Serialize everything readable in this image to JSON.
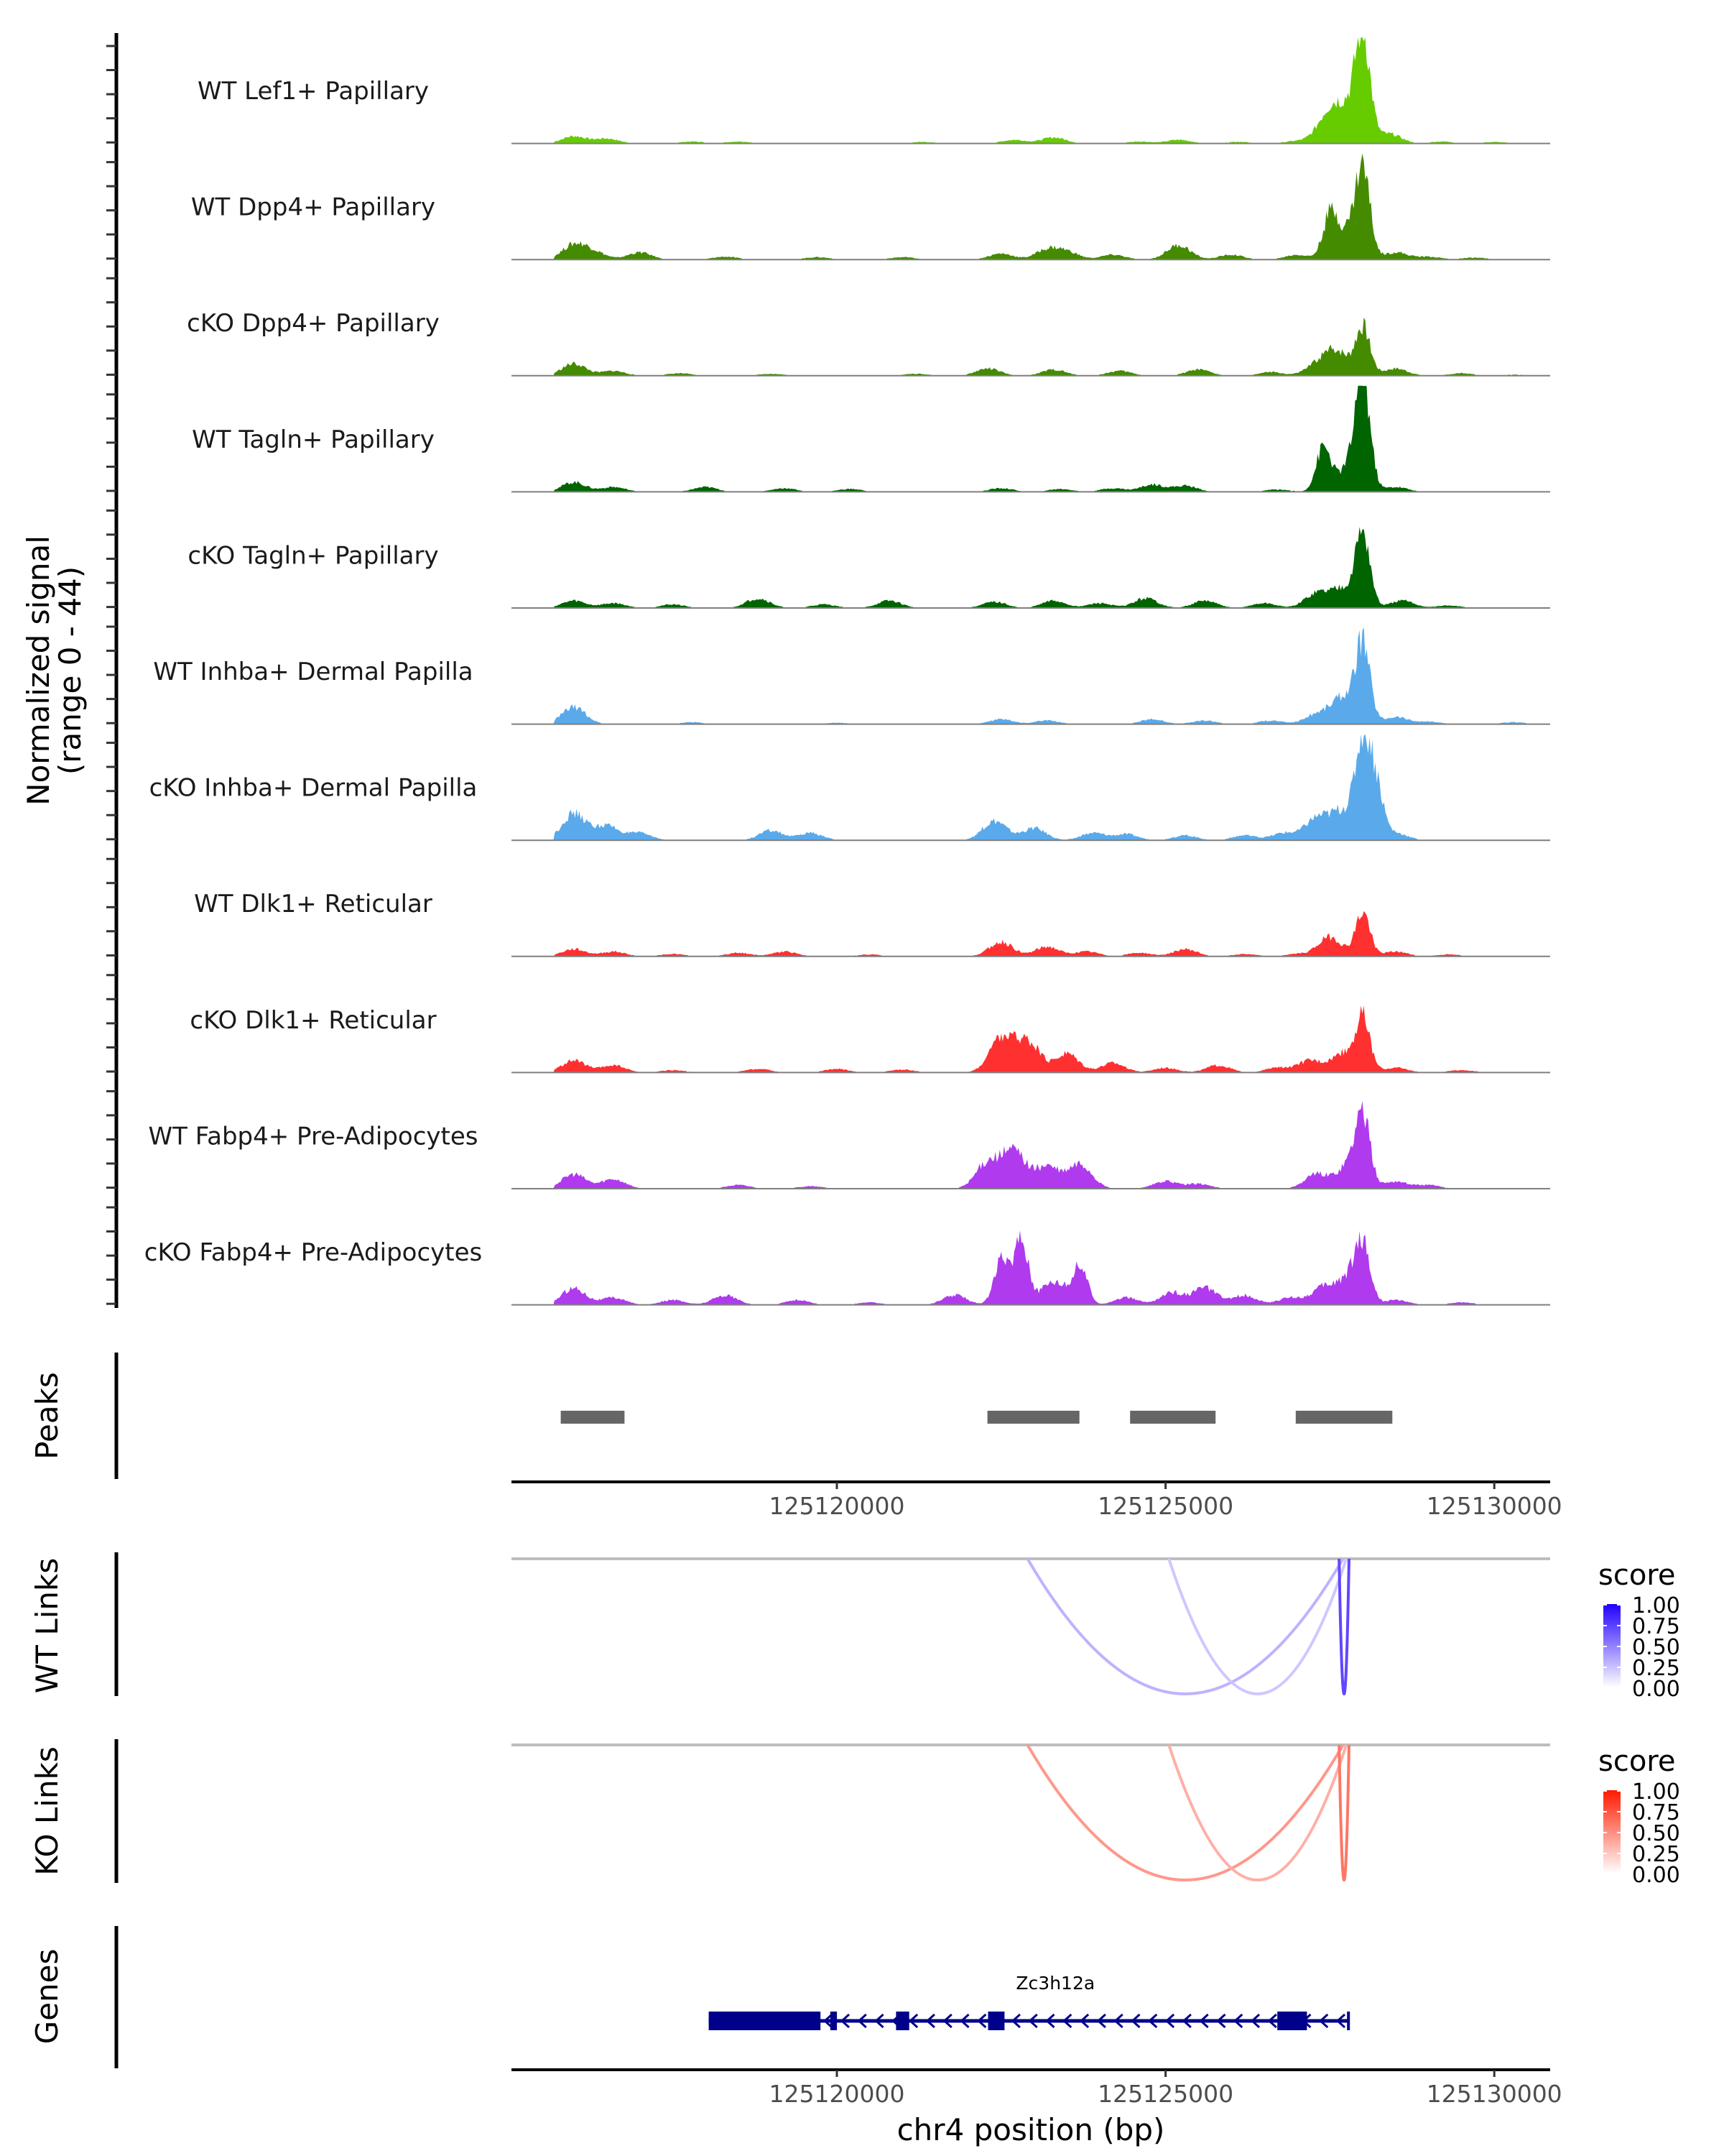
{
  "chart_data": {
    "type": "area",
    "title": "",
    "region": "chr4",
    "xlabel": "chr4 position (bp)",
    "xlim": [
      125115050,
      125130850
    ],
    "x_ticks": [
      125120000,
      125125000,
      125130000
    ],
    "x_tick_labels": [
      "125120000",
      "125125000",
      "125130000"
    ],
    "coverage": {
      "ylabel_line1": "Normalized signal",
      "ylabel_line2": "(range 0 - 44)",
      "ylim": [
        0,
        44
      ],
      "tracks": [
        {
          "label": "WT Lef1+ Papillary",
          "color": "#66cc00",
          "peaks": [
            [
              125116000,
              3
            ],
            [
              125116500,
              2
            ],
            [
              125117800,
              0.8
            ],
            [
              125118500,
              0.8
            ],
            [
              125121300,
              0.6
            ],
            [
              125122700,
              1.5
            ],
            [
              125123300,
              2.5
            ],
            [
              125124600,
              0.8
            ],
            [
              125125200,
              1.5
            ],
            [
              125126100,
              0.7
            ],
            [
              125127000,
              1
            ],
            [
              125127500,
              13
            ],
            [
              125127800,
              12
            ],
            [
              125128000,
              41
            ],
            [
              125128400,
              4
            ],
            [
              125129200,
              0.8
            ],
            [
              125130000,
              0.6
            ]
          ]
        },
        {
          "label": "WT Dpp4+ Papillary",
          "color": "#448b00",
          "peaks": [
            [
              125116000,
              6
            ],
            [
              125116300,
              3
            ],
            [
              125117000,
              3
            ],
            [
              125118300,
              1.2
            ],
            [
              125119700,
              1
            ],
            [
              125121000,
              1
            ],
            [
              125122500,
              2.5
            ],
            [
              125123200,
              4
            ],
            [
              125123500,
              3
            ],
            [
              125124200,
              2
            ],
            [
              125125200,
              6
            ],
            [
              125126000,
              2
            ],
            [
              125127000,
              2
            ],
            [
              125127500,
              16
            ],
            [
              125127750,
              11
            ],
            [
              125128000,
              36
            ],
            [
              125128500,
              3
            ],
            [
              125129000,
              1.2
            ],
            [
              125129700,
              0.8
            ]
          ]
        },
        {
          "label": "cKO Dpp4+ Papillary",
          "color": "#448b00",
          "peaks": [
            [
              125116000,
              5
            ],
            [
              125116600,
              2
            ],
            [
              125117600,
              1
            ],
            [
              125119000,
              0.8
            ],
            [
              125121200,
              0.8
            ],
            [
              125122300,
              3
            ],
            [
              125123300,
              2.5
            ],
            [
              125124300,
              2
            ],
            [
              125125500,
              2.5
            ],
            [
              125126600,
              1.5
            ],
            [
              125127300,
              4
            ],
            [
              125127600,
              10
            ],
            [
              125128000,
              20
            ],
            [
              125128500,
              3
            ],
            [
              125129500,
              1
            ],
            [
              125130300,
              0.5
            ]
          ]
        },
        {
          "label": "WT Tagln+ Papillary",
          "color": "#006400",
          "peaks": [
            [
              125116000,
              4
            ],
            [
              125116600,
              2
            ],
            [
              125118000,
              2
            ],
            [
              125119200,
              1.5
            ],
            [
              125120200,
              1.2
            ],
            [
              125122500,
              1.5
            ],
            [
              125123400,
              1.2
            ],
            [
              125124200,
              1.5
            ],
            [
              125124800,
              3
            ],
            [
              125125300,
              2.5
            ],
            [
              125126700,
              1
            ],
            [
              125127400,
              18
            ],
            [
              125127800,
              10
            ],
            [
              125128000,
              44
            ],
            [
              125128500,
              2
            ]
          ]
        },
        {
          "label": "cKO Tagln+ Papillary",
          "color": "#006400",
          "peaks": [
            [
              125116000,
              3
            ],
            [
              125116600,
              2
            ],
            [
              125117500,
              1.5
            ],
            [
              125118800,
              4
            ],
            [
              125119800,
              1.5
            ],
            [
              125120800,
              3
            ],
            [
              125122400,
              2.5
            ],
            [
              125123300,
              3
            ],
            [
              125124000,
              2
            ],
            [
              125124700,
              4
            ],
            [
              125125600,
              3
            ],
            [
              125126500,
              2
            ],
            [
              125127300,
              6
            ],
            [
              125127700,
              8
            ],
            [
              125128000,
              30
            ],
            [
              125128600,
              3
            ],
            [
              125129300,
              1
            ]
          ]
        },
        {
          "label": "WT Inhba+ Dermal Papilla",
          "color": "#5aaaeb",
          "peaks": [
            [
              125116000,
              7
            ],
            [
              125117800,
              0.8
            ],
            [
              125120000,
              0.6
            ],
            [
              125122500,
              2
            ],
            [
              125123200,
              1.5
            ],
            [
              125124800,
              2
            ],
            [
              125125600,
              1.5
            ],
            [
              125126600,
              1.5
            ],
            [
              125127300,
              4
            ],
            [
              125127700,
              11
            ],
            [
              125128000,
              32
            ],
            [
              125128500,
              3
            ],
            [
              125129000,
              1
            ],
            [
              125130300,
              0.8
            ]
          ]
        },
        {
          "label": "cKO Inhba+ Dermal Papilla",
          "color": "#5aaaeb",
          "peaks": [
            [
              125116000,
              11
            ],
            [
              125116500,
              6
            ],
            [
              125117000,
              3
            ],
            [
              125119000,
              4
            ],
            [
              125119600,
              3
            ],
            [
              125122400,
              8
            ],
            [
              125123000,
              5
            ],
            [
              125123900,
              3
            ],
            [
              125124400,
              2.5
            ],
            [
              125125300,
              2
            ],
            [
              125126200,
              2
            ],
            [
              125126800,
              3
            ],
            [
              125127300,
              9
            ],
            [
              125127700,
              12
            ],
            [
              125128000,
              40
            ],
            [
              125128200,
              22
            ],
            [
              125128500,
              3
            ]
          ]
        },
        {
          "label": "WT Dlk1+ Reticular",
          "color": "#ff3030",
          "peaks": [
            [
              125116000,
              3
            ],
            [
              125116600,
              2
            ],
            [
              125117500,
              1
            ],
            [
              125118500,
              1.5
            ],
            [
              125119200,
              2
            ],
            [
              125120500,
              0.8
            ],
            [
              125122500,
              6
            ],
            [
              125123200,
              4
            ],
            [
              125123800,
              2
            ],
            [
              125124600,
              1.5
            ],
            [
              125125300,
              3
            ],
            [
              125126200,
              1
            ],
            [
              125127000,
              1
            ],
            [
              125127500,
              8
            ],
            [
              125128000,
              18
            ],
            [
              125128500,
              2
            ],
            [
              125129300,
              0.8
            ]
          ]
        },
        {
          "label": "cKO Dlk1+ Reticular",
          "color": "#ff3030",
          "peaks": [
            [
              125116000,
              5
            ],
            [
              125116600,
              3
            ],
            [
              125117500,
              1
            ],
            [
              125118800,
              1.5
            ],
            [
              125120000,
              1.5
            ],
            [
              125121000,
              1.2
            ],
            [
              125122500,
              14
            ],
            [
              125122900,
              13
            ],
            [
              125123500,
              8
            ],
            [
              125124200,
              4
            ],
            [
              125125000,
              2
            ],
            [
              125125800,
              3
            ],
            [
              125126700,
              2
            ],
            [
              125127200,
              5
            ],
            [
              125127700,
              8
            ],
            [
              125128000,
              22
            ],
            [
              125128500,
              2
            ],
            [
              125129500,
              1
            ]
          ]
        },
        {
          "label": "WT Fabp4+ Pre-Adipocytes",
          "color": "#b03aee",
          "peaks": [
            [
              125116000,
              6
            ],
            [
              125116600,
              4
            ],
            [
              125118500,
              1.5
            ],
            [
              125119600,
              1
            ],
            [
              125122300,
              11
            ],
            [
              125122700,
              15
            ],
            [
              125123200,
              9
            ],
            [
              125123700,
              10
            ],
            [
              125125000,
              3
            ],
            [
              125125500,
              2
            ],
            [
              125127300,
              6
            ],
            [
              125127800,
              10
            ],
            [
              125128000,
              27
            ],
            [
              125128500,
              3
            ],
            [
              125129000,
              1.5
            ]
          ]
        },
        {
          "label": "cKO Fabp4+ Pre-Adipocytes",
          "color": "#b03aee",
          "peaks": [
            [
              125116000,
              7
            ],
            [
              125116600,
              3
            ],
            [
              125117500,
              2
            ],
            [
              125118300,
              4
            ],
            [
              125119400,
              2
            ],
            [
              125120500,
              1
            ],
            [
              125121800,
              4
            ],
            [
              125122500,
              18
            ],
            [
              125122800,
              28
            ],
            [
              125123300,
              10
            ],
            [
              125123700,
              16
            ],
            [
              125124400,
              3
            ],
            [
              125125100,
              5
            ],
            [
              125125600,
              7
            ],
            [
              125126200,
              4
            ],
            [
              125126900,
              3
            ],
            [
              125127400,
              7
            ],
            [
              125127800,
              11
            ],
            [
              125128000,
              22
            ],
            [
              125128500,
              2
            ],
            [
              125129500,
              1
            ]
          ]
        }
      ]
    },
    "peaks_track": {
      "label": "Peaks",
      "color": "#666666",
      "regions": [
        [
          125115800,
          125116770
        ],
        [
          125122290,
          125123690
        ],
        [
          125124460,
          125125760
        ],
        [
          125126980,
          125128450
        ]
      ]
    },
    "links": [
      {
        "label": "WT Links",
        "legend_title": "score",
        "color_low": "#ffffff",
        "color_high": "#2200ff",
        "legend_ticks": [
          "1.00",
          "0.75",
          "0.50",
          "0.25",
          "0.00"
        ],
        "arcs": [
          {
            "start": 125122900,
            "end": 125127700,
            "score": 0.3
          },
          {
            "start": 125125050,
            "end": 125127750,
            "score": 0.22
          },
          {
            "start": 125127640,
            "end": 125127790,
            "score": 0.72
          }
        ]
      },
      {
        "label": "KO Links",
        "legend_title": "score",
        "color_low": "#ffffff",
        "color_high": "#ff1a00",
        "legend_ticks": [
          "1.00",
          "0.75",
          "0.50",
          "0.25",
          "0.00"
        ],
        "arcs": [
          {
            "start": 125122900,
            "end": 125127700,
            "score": 0.45
          },
          {
            "start": 125125050,
            "end": 125127750,
            "score": 0.35
          },
          {
            "start": 125127640,
            "end": 125127790,
            "score": 0.6
          }
        ]
      }
    ],
    "genes_track": {
      "label": "Genes",
      "color": "#00008b",
      "genes": [
        {
          "name": "Zc3h12a",
          "strand": "-",
          "start": 125118050,
          "end": 125127800,
          "exons": [
            [
              125118050,
              125119750
            ],
            [
              125119900,
              125120000
            ],
            [
              125120900,
              125121100
            ],
            [
              125122300,
              125122550
            ],
            [
              125126700,
              125127150
            ],
            [
              125127760,
              125127800
            ]
          ]
        }
      ]
    }
  }
}
